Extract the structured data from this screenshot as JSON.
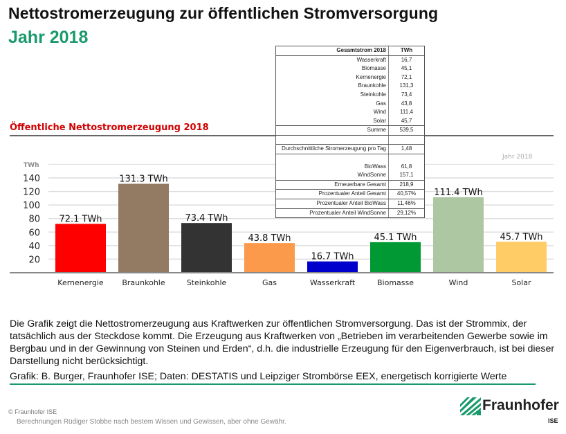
{
  "title": "Nettostromerzeugung zur öffentlichen Stromversorgung",
  "subtitle": "Jahr 2018",
  "chart_data": {
    "type": "bar",
    "title": "Öffentliche Nettostromerzeugung 2018",
    "ylabel": "TWh",
    "annotation": "Jahr 2018",
    "ylim": [
      0,
      160
    ],
    "yticks": [
      20,
      40,
      60,
      80,
      100,
      120,
      140
    ],
    "grid": true,
    "categories": [
      "Kernenergie",
      "Braunkohle",
      "Steinkohle",
      "Gas",
      "Wasserkraft",
      "Biomasse",
      "Wind",
      "Solar"
    ],
    "values": [
      72.1,
      131.3,
      73.4,
      43.8,
      16.7,
      45.1,
      111.4,
      45.7
    ],
    "data_labels": [
      "72.1 TWh",
      "131.3 TWh",
      "73.4 TWh",
      "43.8 TWh",
      "16.7 TWh",
      "45.1 TWh",
      "111.4 TWh",
      "45.7 TWh"
    ],
    "colors": [
      "#ff0000",
      "#927a63",
      "#333333",
      "#fb9a4b",
      "#0000cc",
      "#009933",
      "#aec7a3",
      "#ffcc66"
    ]
  },
  "table": {
    "header": [
      "Gesamtstrom 2018",
      "TWh"
    ],
    "rows1": [
      [
        "Wasserkraft",
        "16,7"
      ],
      [
        "Biomasse",
        "45,1"
      ],
      [
        "Kernenergie",
        "72,1"
      ],
      [
        "Braunkohle",
        "131,3"
      ],
      [
        "Steinkohle",
        "73,4"
      ],
      [
        "Gas",
        "43,8"
      ],
      [
        "Wind",
        "111,4"
      ],
      [
        "Solar",
        "45,7"
      ]
    ],
    "sum": [
      "Summe",
      "539,5"
    ],
    "avg": [
      "Durchschnittliche Stromerzeugung pro Tag",
      "1,48"
    ],
    "rows2": [
      [
        "BioWass",
        "61,8"
      ],
      [
        "WindSonne",
        "157,1"
      ]
    ],
    "rows3": [
      [
        "Erneuerbare Gesamt",
        "218,9"
      ],
      [
        "Prozentualer Anteil Gesamt",
        "40,57%"
      ],
      [
        "Prozentualer Anteil BioWass",
        "11,46%"
      ],
      [
        "Prozentualer Anteil WindSonne",
        "29,12%"
      ]
    ]
  },
  "description": "Die Grafik zeigt die Nettostromerzeugung aus Kraftwerken zur öffentlichen Stromversorgung. Das ist der Strommix, der tatsächlich aus der Steckdose kommt. Die Erzeugung aus Kraftwerken von „Betrieben im verarbeitenden Gewerbe sowie im Bergbau und in der Gewinnung von Steinen und Erden“, d.h. die industrielle Erzeugung für den Eigenverbrauch, ist bei dieser Darstellung nicht berücksichtigt.",
  "credit": "Grafik: B. Burger, Fraunhofer ISE; Daten: DESTATIS und Leipziger Strombörse EEX, energetisch korrigierte Werte",
  "copyright": "© Fraunhofer ISE",
  "disclaimer": "Berechnungen Rüdiger Stobbe nach bestem Wissen und Gewissen, aber ohne Gewähr.",
  "logo": {
    "name": "Fraunhofer",
    "sub": "ISE",
    "color": "#1a9a6c"
  }
}
